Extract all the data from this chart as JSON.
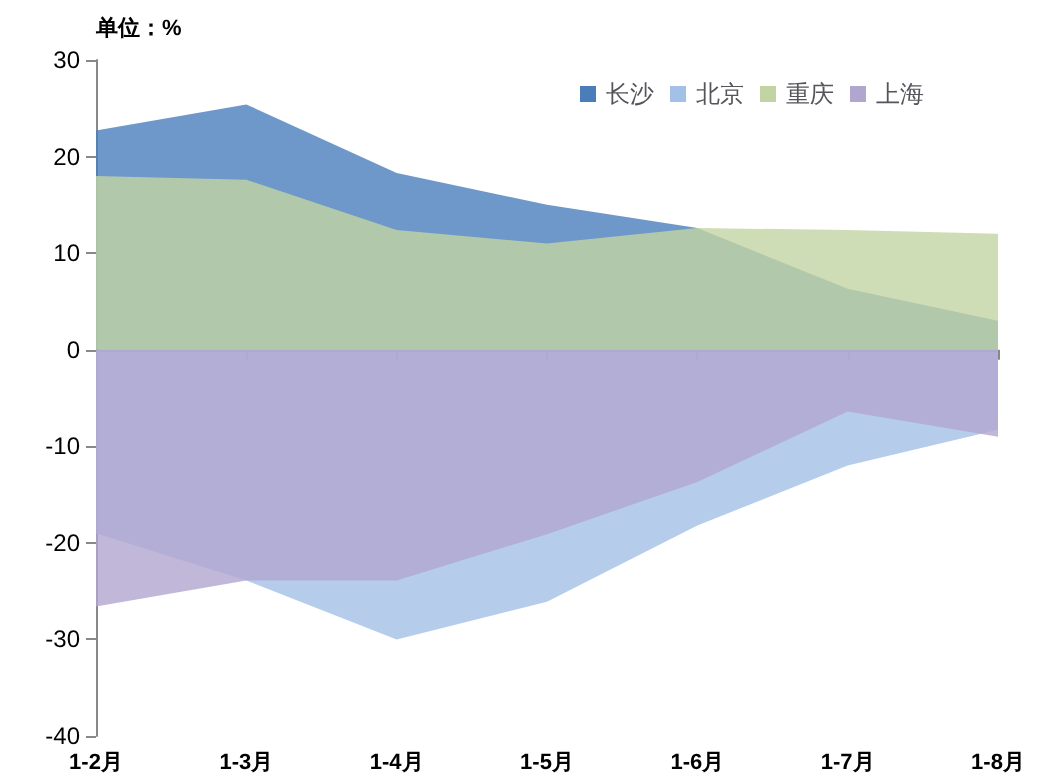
{
  "chart_data": {
    "type": "area",
    "ylabel": "单位：%",
    "categories": [
      "1-2月",
      "1-3月",
      "1-4月",
      "1-5月",
      "1-6月",
      "1-7月",
      "1-8月"
    ],
    "series": [
      {
        "name": "长沙",
        "color": "#4a7ebb",
        "values": [
          22.7,
          25.4,
          18.3,
          15.0,
          12.6,
          6.3,
          3.0
        ]
      },
      {
        "name": "北京",
        "color": "#a3c1e6",
        "values": [
          -19.0,
          -23.9,
          -30.0,
          -26.1,
          -18.2,
          -12.0,
          -8.3
        ]
      },
      {
        "name": "重庆",
        "color": "#c3d4a4",
        "values": [
          18.0,
          17.6,
          12.4,
          11.0,
          12.6,
          12.4,
          12.0
        ]
      },
      {
        "name": "上海",
        "color": "#b1a6d0",
        "values": [
          -26.6,
          -23.9,
          -23.9,
          -19.1,
          -13.7,
          -6.4,
          -9.0
        ]
      }
    ],
    "ylim": [
      -40,
      30
    ],
    "yticks": [
      -40,
      -30,
      -20,
      -10,
      0,
      10,
      20,
      30
    ],
    "grid": false,
    "legend": "top right"
  }
}
